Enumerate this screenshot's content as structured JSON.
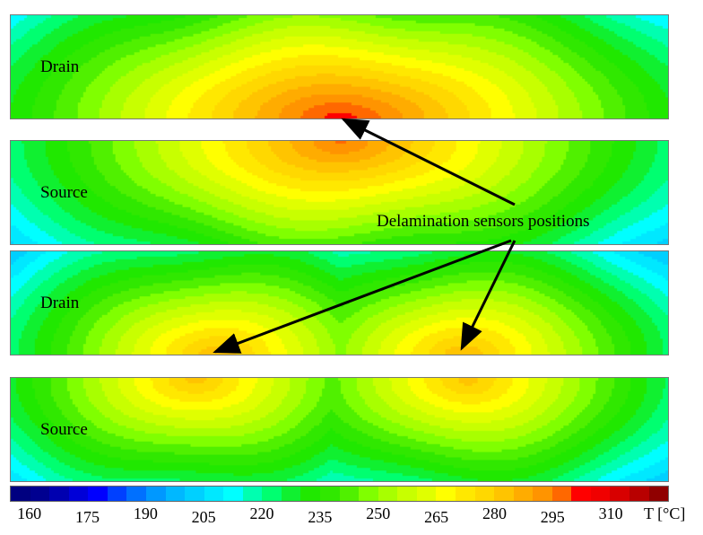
{
  "chart_data": {
    "type": "heatmap",
    "title": "",
    "panels": [
      {
        "label": "Drain",
        "peak_location": "bottom-center",
        "max_T": 300
      },
      {
        "label": "Source",
        "peak_location": "top-center",
        "max_T": 295
      },
      {
        "label": "Drain",
        "peak_location": "bottom, two hotspots",
        "max_T": 285
      },
      {
        "label": "Source",
        "peak_location": "top, two hotspots",
        "max_T": 280
      }
    ],
    "annotation": "Delamination sensors positions",
    "colorbar": {
      "label": "T [°C]",
      "ticks": [
        "160",
        "175",
        "190",
        "205",
        "220",
        "235",
        "250",
        "265",
        "280",
        "295",
        "310"
      ],
      "range": [
        155,
        325
      ],
      "step": 5,
      "colors": [
        "#000080",
        "#000090",
        "#0000b0",
        "#0000d8",
        "#0000ff",
        "#0040ff",
        "#0070ff",
        "#0098ff",
        "#00b8ff",
        "#00d0ff",
        "#00e8ff",
        "#00ffff",
        "#00ffb0",
        "#00ff70",
        "#10f030",
        "#20e800",
        "#30e800",
        "#50f000",
        "#80ff00",
        "#a8ff00",
        "#c8ff00",
        "#e0ff00",
        "#ffff00",
        "#ffe800",
        "#ffd800",
        "#ffc400",
        "#ffac00",
        "#ff9400",
        "#ff6800",
        "#ff0000",
        "#f00000",
        "#d80000",
        "#b80000",
        "#900000"
      ]
    }
  }
}
